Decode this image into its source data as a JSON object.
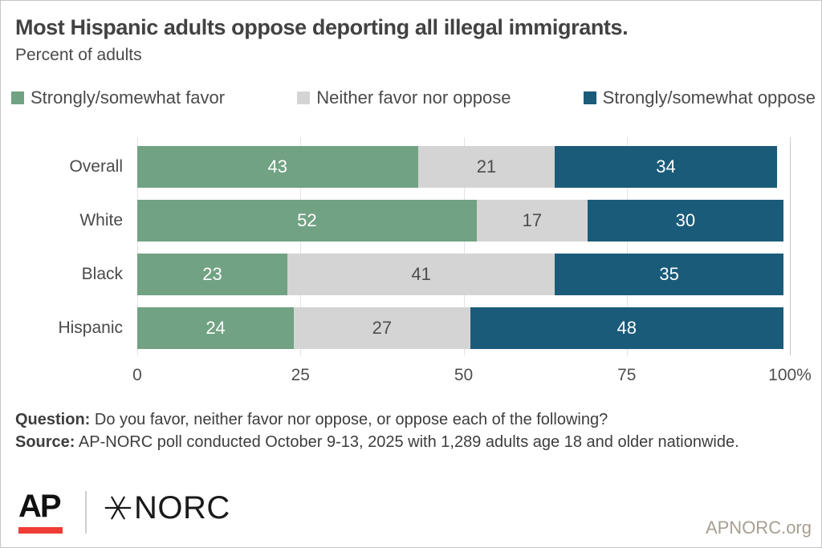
{
  "header": {
    "title": "Most Hispanic adults oppose deporting all illegal immigrants.",
    "subtitle": "Percent of adults"
  },
  "chart_data": {
    "type": "bar",
    "orientation": "horizontal",
    "stacked": true,
    "title": "Most Hispanic adults oppose deporting all illegal immigrants.",
    "subtitle": "Percent of adults",
    "categories": [
      "Overall",
      "White",
      "Black",
      "Hispanic"
    ],
    "series": [
      {
        "name": "Strongly/somewhat favor",
        "color": "#71a283",
        "label_color": "#ffffff",
        "values": [
          43,
          52,
          23,
          24
        ]
      },
      {
        "name": "Neither favor nor oppose",
        "color": "#d4d4d4",
        "label_color": "#4d4d4d",
        "values": [
          21,
          17,
          41,
          27
        ]
      },
      {
        "name": "Strongly/somewhat oppose",
        "color": "#1b5b7a",
        "label_color": "#ffffff",
        "values": [
          34,
          30,
          35,
          48
        ]
      }
    ],
    "x_ticks": [
      "0",
      "25",
      "50",
      "75",
      "100%"
    ],
    "x_tick_values": [
      0,
      25,
      50,
      75,
      100
    ],
    "xlim": [
      0,
      100
    ],
    "grid": true,
    "legend_position": "top"
  },
  "footer": {
    "question_label": "Question:",
    "question_text": " Do you favor, neither favor nor oppose, or oppose each of the following?",
    "source_label": "Source:",
    "source_text": " AP-NORC poll conducted October 9-13, 2025 with 1,289 adults age 18 and older nationwide."
  },
  "branding": {
    "ap_logo": "AP",
    "norc_logo": "NORC",
    "star_icon": "six-point-star",
    "website": "APNORC.org",
    "accent_red": "#ef3c34"
  }
}
